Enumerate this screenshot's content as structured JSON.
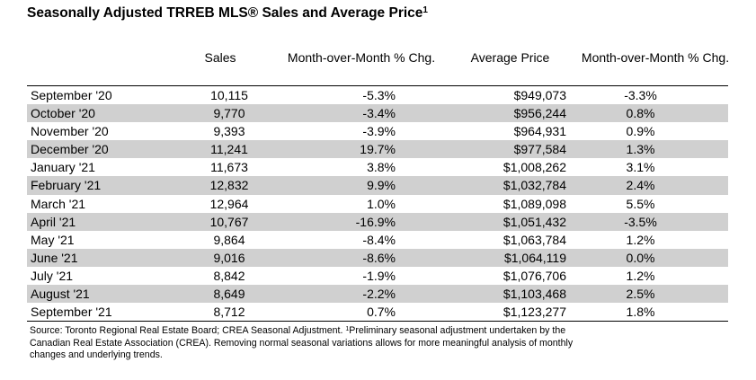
{
  "title": "Seasonally Adjusted TRREB MLS® Sales and Average Price",
  "title_footnote_mark": "1",
  "columns": {
    "sales": "Sales",
    "mom_sales": "Month-over-Month % Chg.",
    "avg_price": "Average Price",
    "mom_price": "Month-over-Month % Chg."
  },
  "rows": [
    {
      "month": "September '20",
      "sales": "10,115",
      "mom_sales": "-5.3%",
      "avg_price": "$949,073",
      "mom_price": "-3.3%"
    },
    {
      "month": "October '20",
      "sales": "9,770",
      "mom_sales": "-3.4%",
      "avg_price": "$956,244",
      "mom_price": "0.8%"
    },
    {
      "month": "November '20",
      "sales": "9,393",
      "mom_sales": "-3.9%",
      "avg_price": "$964,931",
      "mom_price": "0.9%"
    },
    {
      "month": "December '20",
      "sales": "11,241",
      "mom_sales": "19.7%",
      "avg_price": "$977,584",
      "mom_price": "1.3%"
    },
    {
      "month": "January '21",
      "sales": "11,673",
      "mom_sales": "3.8%",
      "avg_price": "$1,008,262",
      "mom_price": "3.1%"
    },
    {
      "month": "February '21",
      "sales": "12,832",
      "mom_sales": "9.9%",
      "avg_price": "$1,032,784",
      "mom_price": "2.4%"
    },
    {
      "month": "March '21",
      "sales": "12,964",
      "mom_sales": "1.0%",
      "avg_price": "$1,089,098",
      "mom_price": "5.5%"
    },
    {
      "month": "April '21",
      "sales": "10,767",
      "mom_sales": "-16.9%",
      "avg_price": "$1,051,432",
      "mom_price": "-3.5%"
    },
    {
      "month": "May '21",
      "sales": "9,864",
      "mom_sales": "-8.4%",
      "avg_price": "$1,063,784",
      "mom_price": "1.2%"
    },
    {
      "month": "June '21",
      "sales": "9,016",
      "mom_sales": "-8.6%",
      "avg_price": "$1,064,119",
      "mom_price": "0.0%"
    },
    {
      "month": "July '21",
      "sales": "8,842",
      "mom_sales": "-1.9%",
      "avg_price": "$1,076,706",
      "mom_price": "1.2%"
    },
    {
      "month": "August '21",
      "sales": "8,649",
      "mom_sales": "-2.2%",
      "avg_price": "$1,103,468",
      "mom_price": "2.5%"
    },
    {
      "month": "September '21",
      "sales": "8,712",
      "mom_sales": "0.7%",
      "avg_price": "$1,123,277",
      "mom_price": "1.8%"
    }
  ],
  "shade_color": "#d0d0d0",
  "footnote": {
    "source_text": "Source: Toronto Regional Real Estate Board; CREA Seasonal Adjustment. ",
    "mark": "1",
    "note_text": "Preliminary seasonal adjustment undertaken by the Canadian Real Estate Association (CREA).  Removing normal seasonal variations allows for more meaningful analysis of monthly changes and underlying trends."
  }
}
